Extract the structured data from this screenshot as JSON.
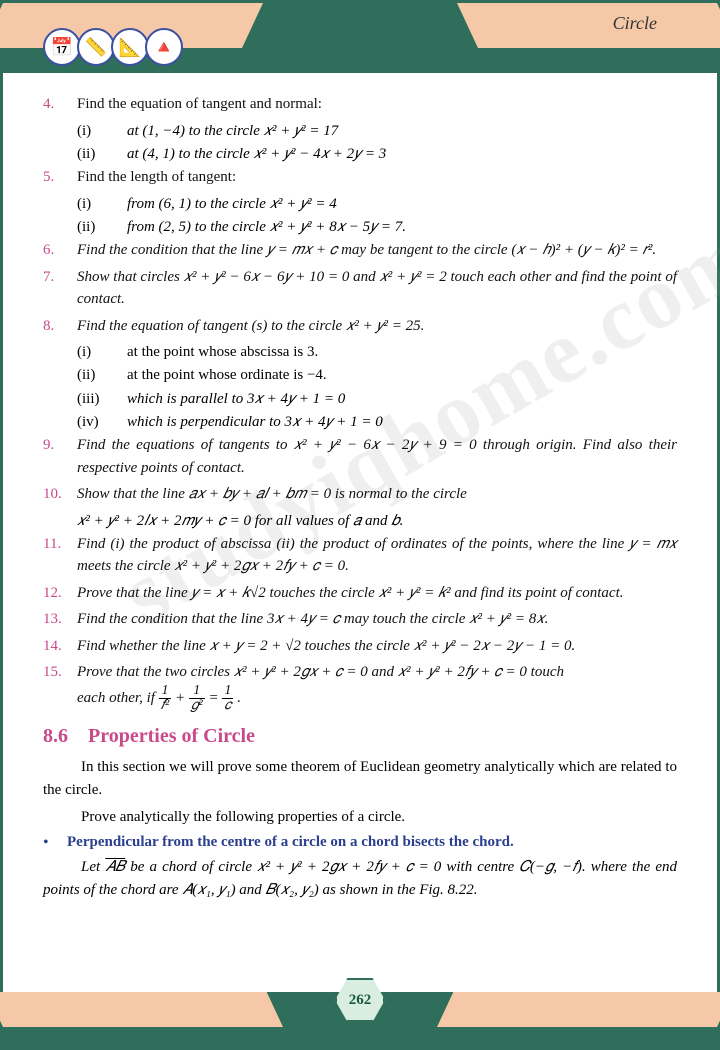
{
  "header": {
    "title": "Circle"
  },
  "icons": [
    "📅",
    "📏",
    "📐",
    "🔺"
  ],
  "watermark": "studyiqhome.com",
  "problems": {
    "p4": {
      "num": "4.",
      "text": "Find the equation of tangent and normal:",
      "sub": {
        "i": {
          "label": "(i)",
          "text": "at (1, −4) to the circle 𝑥² + 𝑦² = 17"
        },
        "ii": {
          "label": "(ii)",
          "text": "at (4, 1) to the circle 𝑥² + 𝑦² − 4𝑥 + 2𝑦 = 3"
        }
      }
    },
    "p5": {
      "num": "5.",
      "text": "Find the length of tangent:",
      "sub": {
        "i": {
          "label": "(i)",
          "text": "from (6, 1) to the circle 𝑥² + 𝑦² = 4"
        },
        "ii": {
          "label": "(ii)",
          "text": "from (2, 5) to the circle 𝑥² + 𝑦² + 8𝑥 − 5𝑦 = 7."
        }
      }
    },
    "p6": {
      "num": "6.",
      "text": "Find the condition that the line 𝑦 = 𝑚𝑥 + 𝑐 may be tangent to the circle (𝑥 − ℎ)² + (𝑦 − 𝑘)² = 𝑟²."
    },
    "p7": {
      "num": "7.",
      "text": "Show that circles 𝑥² + 𝑦² − 6𝑥 − 6𝑦 + 10 = 0 and 𝑥² + 𝑦² = 2 touch each other and find the point of contact."
    },
    "p8": {
      "num": "8.",
      "text": "Find the equation of tangent (s) to the circle 𝑥² + 𝑦² = 25.",
      "sub": {
        "i": {
          "label": "(i)",
          "text": "at the point whose abscissa is 3."
        },
        "ii": {
          "label": "(ii)",
          "text": "at the point whose ordinate is −4."
        },
        "iii": {
          "label": "(iii)",
          "text": "which is parallel to 3𝑥 + 4𝑦 + 1 = 0"
        },
        "iv": {
          "label": "(iv)",
          "text": "which is perpendicular to 3𝑥 + 4𝑦 + 1 = 0"
        }
      }
    },
    "p9": {
      "num": "9.",
      "text": "Find the equations of tangents to 𝑥² + 𝑦² − 6𝑥 − 2𝑦 + 9 = 0 through origin. Find also their respective points of contact."
    },
    "p10": {
      "num": "10.",
      "text": "Show that the line 𝑎𝑥 + 𝑏𝑦 + 𝑎𝑙 + 𝑏𝑚 = 0 is normal to the circle",
      "line2": " 𝑥² + 𝑦² + 2𝑙𝑥 + 2𝑚𝑦 + 𝑐 = 0 for all values of 𝑎 and 𝑏."
    },
    "p11": {
      "num": "11.",
      "text": "Find (i) the product of abscissa (ii) the product of ordinates of the points, where the line 𝑦 = 𝑚𝑥 meets the circle 𝑥² + 𝑦² + 2𝑔𝑥 + 2𝑓𝑦 + 𝑐 = 0."
    },
    "p12": {
      "num": "12.",
      "text": "Prove that the line 𝑦 = 𝑥 + 𝑘√2 touches the circle 𝑥² + 𝑦² = 𝑘² and find its point of contact."
    },
    "p13": {
      "num": "13.",
      "text": "Find the condition that the line 3𝑥 + 4𝑦 = 𝑐 may touch the circle 𝑥² + 𝑦² = 8𝑥."
    },
    "p14": {
      "num": "14.",
      "text": "Find whether the line 𝑥 + 𝑦 = 2 + √2 touches the circle 𝑥² + 𝑦² − 2𝑥 − 2𝑦 − 1 = 0."
    },
    "p15": {
      "num": "15.",
      "text_a": "Prove that the two circles 𝑥² + 𝑦² + 2𝑔𝑥 + 𝑐 = 0  and 𝑥² + 𝑦² + 2𝑓𝑦 + 𝑐 = 0 touch",
      "text_b": "each other, if ",
      "frac1_top": "1",
      "frac1_bot": "𝑓²",
      "plus": " + ",
      "frac2_top": "1",
      "frac2_bot": "𝑔²",
      "eq": " = ",
      "frac3_top": "1",
      "frac3_bot": "𝑐",
      "period": "."
    }
  },
  "section": {
    "num": "8.6",
    "title": "Properties of Circle",
    "para1": "In this section we will prove some theorem of Euclidean geometry analytically which are related to the circle.",
    "para2": "Prove analytically the following properties of a circle.",
    "bullet": "Perpendicular from the centre of a circle on a chord bisects the chord.",
    "para3_a": "Let ",
    "para3_ab": "𝐴𝐵",
    "para3_b": " be a chord of circle 𝑥² + 𝑦² + 2𝑔𝑥 + 2𝑓𝑦 + 𝑐 = 0 with centre 𝐶(−𝑔, −𝑓). where the end points of the chord are 𝐴(𝑥₁, 𝑦₁) and 𝐵(𝑥₂, 𝑦₂) as shown in the Fig. 8.22."
  },
  "page_number": "262"
}
